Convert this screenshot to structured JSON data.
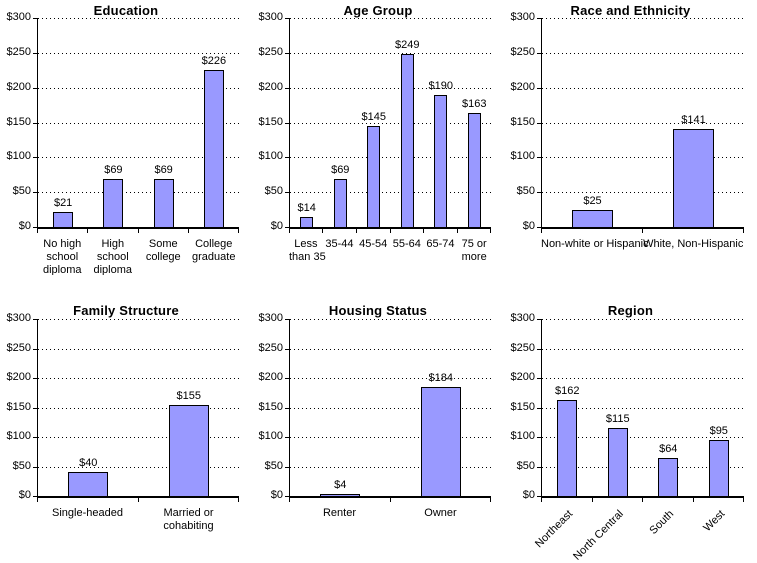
{
  "style": {
    "bar_fill": "#9999ff",
    "bar_border": "#000000",
    "gridline_color": "#000000",
    "axis_color": "#000000",
    "text_color": "#000000",
    "background": "#ffffff"
  },
  "y_axis": {
    "tick_labels": [
      "$0",
      "$50",
      "$100",
      "$150",
      "$200",
      "$250",
      "$300"
    ],
    "min": 0,
    "max": 300,
    "step": 50
  },
  "chart_data": [
    {
      "type": "bar",
      "title": "Education",
      "categories": [
        "No high school diploma",
        "High school diploma",
        "Some college",
        "College graduate"
      ],
      "category_lines": [
        [
          "No high",
          "school",
          "diploma"
        ],
        [
          "High",
          "school",
          "diploma"
        ],
        [
          "Some",
          "college"
        ],
        [
          "College",
          "graduate"
        ]
      ],
      "values": [
        21,
        69,
        69,
        226
      ],
      "value_labels": [
        "$21",
        "$69",
        "$69",
        "$226"
      ],
      "ylim": [
        0,
        300
      ],
      "grid": true,
      "label_rotation": 0
    },
    {
      "type": "bar",
      "title": "Age Group",
      "categories": [
        "Less than 35",
        "35-44",
        "45-54",
        "55-64",
        "65-74",
        "75 or more"
      ],
      "category_lines": [
        [
          "Less",
          "than 35"
        ],
        [
          "35-44"
        ],
        [
          "45-54"
        ],
        [
          "55-64"
        ],
        [
          "65-74"
        ],
        [
          "75 or",
          "more"
        ]
      ],
      "values": [
        14,
        69,
        145,
        249,
        190,
        163
      ],
      "value_labels": [
        "$14",
        "$69",
        "$145",
        "$249",
        "$190",
        "$163"
      ],
      "ylim": [
        0,
        300
      ],
      "grid": true,
      "label_rotation": 0
    },
    {
      "type": "bar",
      "title": "Race and Ethnicity",
      "categories": [
        "Non-white or Hispanic",
        "White, Non-Hispanic"
      ],
      "category_lines": [
        [
          "Non-white or Hispanic"
        ],
        [
          "White, Non-Hispanic"
        ]
      ],
      "values": [
        25,
        141
      ],
      "value_labels": [
        "$25",
        "$141"
      ],
      "ylim": [
        0,
        300
      ],
      "grid": true,
      "label_rotation": 0
    },
    {
      "type": "bar",
      "title": "Family Structure",
      "categories": [
        "Single-headed",
        "Married or cohabiting"
      ],
      "category_lines": [
        [
          "Single-headed"
        ],
        [
          "Married or",
          "cohabiting"
        ]
      ],
      "values": [
        40,
        155
      ],
      "value_labels": [
        "$40",
        "$155"
      ],
      "ylim": [
        0,
        300
      ],
      "grid": true,
      "label_rotation": 0
    },
    {
      "type": "bar",
      "title": "Housing Status",
      "categories": [
        "Renter",
        "Owner"
      ],
      "category_lines": [
        [
          "Renter"
        ],
        [
          "Owner"
        ]
      ],
      "values": [
        4,
        184
      ],
      "value_labels": [
        "$4",
        "$184"
      ],
      "ylim": [
        0,
        300
      ],
      "grid": true,
      "label_rotation": 0
    },
    {
      "type": "bar",
      "title": "Region",
      "categories": [
        "Northeast",
        "North Central",
        "South",
        "West"
      ],
      "category_lines": [
        [
          "Northeast"
        ],
        [
          "North Central"
        ],
        [
          "South"
        ],
        [
          "West"
        ]
      ],
      "values": [
        162,
        115,
        64,
        95
      ],
      "value_labels": [
        "$162",
        "$115",
        "$64",
        "$95"
      ],
      "ylim": [
        0,
        300
      ],
      "grid": true,
      "label_rotation": -45
    }
  ]
}
